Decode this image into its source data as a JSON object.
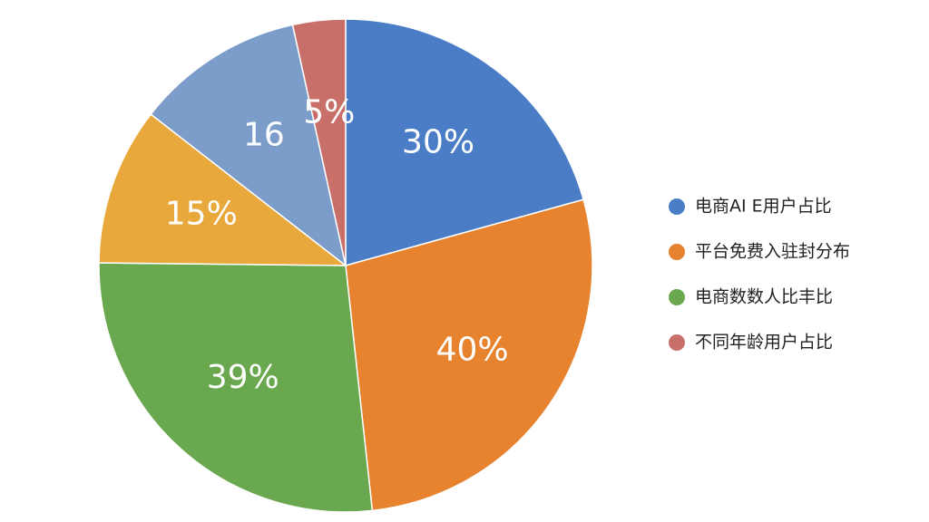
{
  "chart_data": {
    "type": "pie",
    "values": [
      30,
      40,
      39,
      15,
      16,
      5
    ],
    "value_labels": [
      "30%",
      "40%",
      "39%",
      "15%",
      "16",
      "5%"
    ],
    "colors": [
      "#4a7dc6",
      "#e7822f",
      "#6aa84f",
      "#e8a83c",
      "#7c9dca",
      "#c86f6a"
    ],
    "legend": [
      {
        "name": "电商AI E用户占比",
        "color": "#4a7dc6"
      },
      {
        "name": "平台免费入驻封分布",
        "color": "#e7822f"
      },
      {
        "name": "电商数数人比丰比",
        "color": "#6aa84f"
      },
      {
        "name": "不同年龄用户占比",
        "color": "#c86f6a"
      }
    ]
  }
}
